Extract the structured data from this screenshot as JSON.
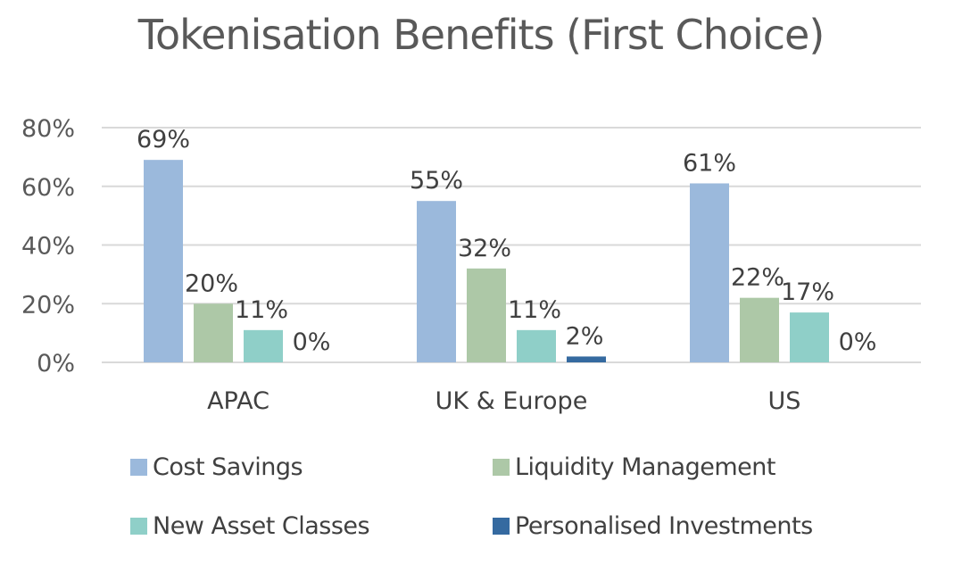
{
  "chart_data": {
    "type": "bar",
    "title": "Tokenisation Benefits (First Choice)",
    "xlabel": "",
    "ylabel": "",
    "ylim": [
      0,
      80
    ],
    "grid": true,
    "yticks": [
      "0%",
      "20%",
      "40%",
      "60%",
      "80%"
    ],
    "ytick_values": [
      0,
      20,
      40,
      60,
      80
    ],
    "categories": [
      "APAC",
      "UK & Europe",
      "US"
    ],
    "legend_position": "bottom",
    "series": [
      {
        "name": "Cost Savings",
        "color": "#9BB9DC",
        "values": [
          69,
          55,
          61
        ],
        "labels": [
          "69%",
          "55%",
          "61%"
        ]
      },
      {
        "name": "Liquidity Management",
        "color": "#ADC8A7",
        "values": [
          20,
          32,
          22
        ],
        "labels": [
          "20%",
          "32%",
          "22%"
        ]
      },
      {
        "name": "New Asset Classes",
        "color": "#8FCFC8",
        "values": [
          11,
          11,
          17
        ],
        "labels": [
          "11%",
          "11%",
          "17%"
        ]
      },
      {
        "name": "Personalised Investments",
        "color": "#356AA0",
        "values": [
          0,
          2,
          0
        ],
        "labels": [
          "0%",
          "2%",
          "0%"
        ]
      }
    ]
  }
}
